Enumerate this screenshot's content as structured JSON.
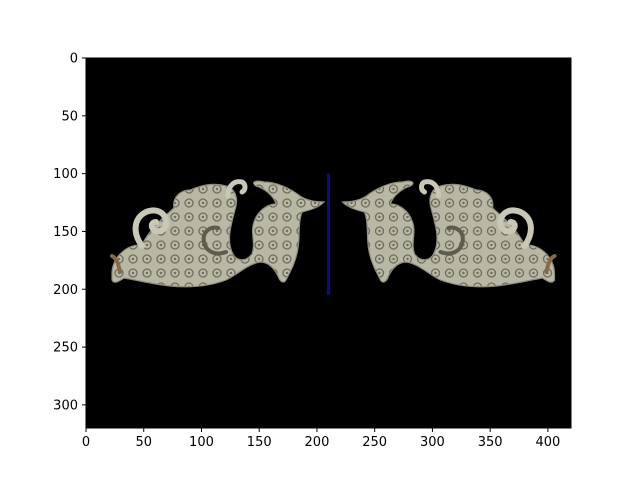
{
  "colors": {
    "background": "#000000",
    "jade_light": "#c9c8b6",
    "jade_mid": "#a7a593",
    "jade_dark": "#5e5c4c",
    "jade_rust": "#8a6a45",
    "marker_line": "#0a0a8c"
  },
  "chart_data": {
    "type": "image",
    "title": "",
    "xlabel": "",
    "ylabel": "",
    "xlim": [
      0,
      420
    ],
    "ylim": [
      320,
      0
    ],
    "xticks": [
      0,
      50,
      100,
      150,
      200,
      250,
      300,
      350,
      400
    ],
    "yticks": [
      0,
      50,
      100,
      150,
      200,
      250,
      300
    ],
    "grid": false,
    "annotations": [
      {
        "type": "vertical-line",
        "x": 210,
        "y_start": 100,
        "y_end": 205
      }
    ],
    "image_content": "pair of mirrored jade dragon pendants on black background"
  }
}
